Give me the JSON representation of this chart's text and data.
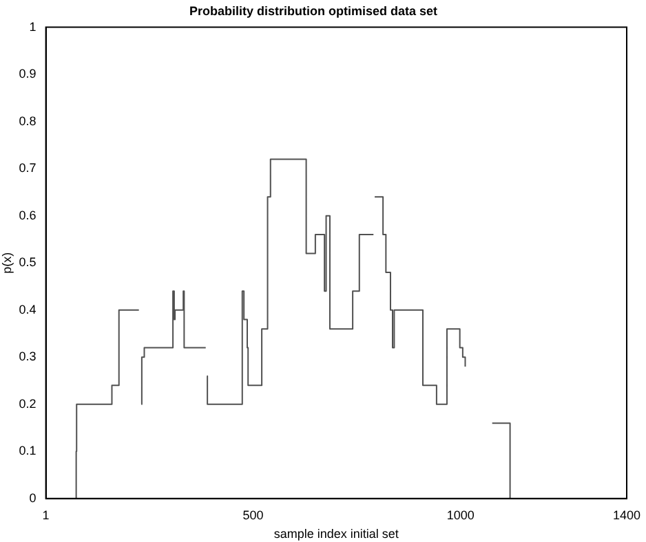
{
  "chart_data": {
    "type": "step",
    "title": "Probability distribution optimised data set",
    "xlabel": "sample index initial set",
    "ylabel": "p(x)",
    "x": [
      73,
      74,
      75,
      160,
      177,
      225,
      226,
      231,
      232,
      238,
      307,
      310,
      312,
      332,
      334,
      386,
      387,
      389,
      390,
      474,
      478,
      486,
      488,
      521,
      535,
      542,
      628,
      650,
      672,
      676,
      685,
      740,
      756,
      790,
      791,
      793,
      813,
      820,
      831,
      836,
      840,
      909,
      942,
      967,
      998,
      1005,
      1011,
      1012,
      1076,
      1119
    ],
    "values": [
      0,
      0.1,
      0.2,
      0.24,
      0.4,
      0.4,
      null,
      0.2,
      0.3,
      0.32,
      0.44,
      0.38,
      0.4,
      0.44,
      0.32,
      0.32,
      null,
      0.26,
      0.2,
      0.44,
      0.38,
      0.32,
      0.24,
      0.36,
      0.64,
      0.72,
      0.52,
      0.56,
      0.44,
      0.6,
      0.36,
      0.44,
      0.56,
      0.56,
      null,
      0.64,
      0.56,
      0.48,
      0.4,
      0.32,
      0.4,
      0.24,
      0.2,
      0.36,
      0.32,
      0.3,
      0.28,
      null,
      0.16,
      0
    ],
    "color": "#505050",
    "xlim": [
      1,
      1400
    ],
    "xticks": [
      1,
      500,
      1000,
      1400
    ],
    "ylim": [
      0,
      1
    ],
    "yticks": [
      0,
      0.1,
      0.2,
      0.3,
      0.4,
      0.5,
      0.6,
      0.7,
      0.8,
      0.9,
      1
    ],
    "grid": false,
    "legend": false
  }
}
